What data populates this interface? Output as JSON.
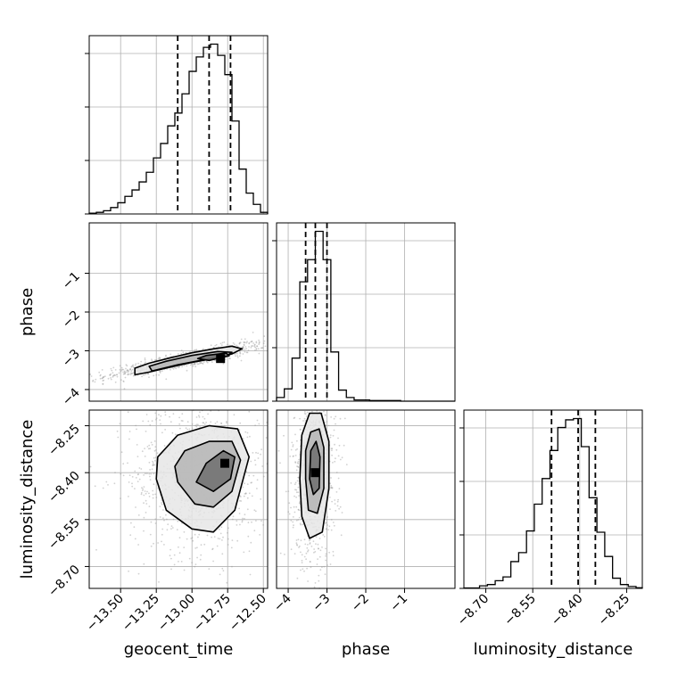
{
  "chart_data": {
    "type": "corner",
    "parameters": [
      {
        "name": "geocent_time",
        "label": "geocent_time",
        "range": [
          -13.72,
          -12.47
        ],
        "ticks": [
          -13.5,
          -13.25,
          -13.0,
          -12.75,
          -12.5
        ],
        "tick_labels": [
          "−13.50",
          "−13.25",
          "−13.00",
          "−12.75",
          "−12.50"
        ],
        "quantiles": [
          -13.1,
          -12.88,
          -12.73
        ]
      },
      {
        "name": "phase",
        "label": "phase",
        "range": [
          -4.3,
          0.3
        ],
        "ticks": [
          -4,
          -3,
          -2,
          -1
        ],
        "tick_labels": [
          "−4",
          "−3",
          "−2",
          "−1"
        ],
        "quantiles": [
          -3.55,
          -3.3,
          -3.0
        ]
      },
      {
        "name": "luminosity_distance",
        "label": "luminosity_distance",
        "range": [
          -8.77,
          -8.2
        ],
        "ticks": [
          -8.7,
          -8.55,
          -8.4,
          -8.25
        ],
        "tick_labels": [
          "−8.70",
          "−8.55",
          "−8.40",
          "−8.25"
        ],
        "quantiles": [
          -8.49,
          -8.405,
          -8.35
        ]
      }
    ],
    "histograms": [
      {
        "parameter": "geocent_time",
        "edges": [
          -13.72,
          -13.67,
          -13.62,
          -13.57,
          -13.52,
          -13.47,
          -13.42,
          -13.37,
          -13.32,
          -13.27,
          -13.22,
          -13.17,
          -13.12,
          -13.07,
          -13.02,
          -12.97,
          -12.92,
          -12.87,
          -12.82,
          -12.77,
          -12.72,
          -12.67,
          -12.62,
          -12.57,
          -12.52,
          -12.47
        ],
        "counts": [
          0.5,
          1,
          2,
          4,
          7,
          11,
          15,
          20,
          26,
          35,
          44,
          55,
          63,
          75,
          89,
          98,
          104,
          106,
          99,
          87,
          58,
          28,
          13,
          6,
          1
        ]
      },
      {
        "parameter": "phase",
        "edges": [
          -4.3,
          -4.1,
          -3.9,
          -3.7,
          -3.5,
          -3.3,
          -3.1,
          -2.9,
          -2.7,
          -2.5,
          -2.3,
          -2.1,
          -1.9,
          -1.7,
          -1.5,
          -1.3,
          -1.1,
          -0.9,
          -0.7,
          -0.5,
          -0.3,
          -0.1,
          0.1,
          0.3
        ],
        "counts": [
          3,
          10,
          35,
          97,
          115,
          138,
          115,
          40,
          9,
          3,
          1,
          1,
          0.5,
          0.5,
          0.5,
          0.5,
          0,
          0,
          0,
          0,
          0,
          0,
          0
        ]
      },
      {
        "parameter": "luminosity_distance",
        "edges": [
          -8.77,
          -8.745,
          -8.72,
          -8.695,
          -8.67,
          -8.645,
          -8.62,
          -8.595,
          -8.57,
          -8.545,
          -8.52,
          -8.495,
          -8.47,
          -8.445,
          -8.42,
          -8.395,
          -8.37,
          -8.345,
          -8.32,
          -8.295,
          -8.27,
          -8.245,
          -8.22,
          -8.2
        ],
        "counts": [
          0.3,
          0.3,
          2,
          3,
          6,
          9,
          21,
          28,
          45,
          66,
          86,
          108,
          126,
          132,
          133,
          111,
          71,
          44,
          25,
          8,
          3,
          1.5,
          0.5
        ]
      }
    ],
    "pairs": [
      {
        "x": "geocent_time",
        "y": "phase",
        "mode": [
          -12.8,
          -3.2
        ],
        "contours": [
          [
            [
              -13.4,
              -3.62
            ],
            [
              -13.3,
              -3.55
            ],
            [
              -13.15,
              -3.42
            ],
            [
              -13.0,
              -3.3
            ],
            [
              -12.85,
              -3.2
            ],
            [
              -12.72,
              -3.08
            ],
            [
              -12.65,
              -2.95
            ],
            [
              -12.72,
              -2.88
            ],
            [
              -12.85,
              -2.95
            ],
            [
              -13.0,
              -3.05
            ],
            [
              -13.15,
              -3.18
            ],
            [
              -13.3,
              -3.32
            ],
            [
              -13.4,
              -3.45
            ]
          ],
          [
            [
              -13.28,
              -3.52
            ],
            [
              -13.1,
              -3.36
            ],
            [
              -12.9,
              -3.22
            ],
            [
              -12.76,
              -3.14
            ],
            [
              -12.72,
              -3.04
            ],
            [
              -12.82,
              -3.02
            ],
            [
              -13.0,
              -3.12
            ],
            [
              -13.18,
              -3.27
            ],
            [
              -13.3,
              -3.4
            ]
          ],
          [
            [
              -12.88,
              -3.25
            ],
            [
              -12.74,
              -3.13
            ],
            [
              -12.76,
              -3.06
            ],
            [
              -12.9,
              -3.12
            ],
            [
              -12.96,
              -3.2
            ]
          ]
        ]
      },
      {
        "x": "geocent_time",
        "y": "luminosity_distance",
        "mode": [
          -12.77,
          -8.37
        ],
        "contours": [
          [
            [
              -13.25,
              -8.42
            ],
            [
              -13.18,
              -8.52
            ],
            [
              -13.0,
              -8.58
            ],
            [
              -12.85,
              -8.59
            ],
            [
              -12.7,
              -8.52
            ],
            [
              -12.6,
              -8.35
            ],
            [
              -12.68,
              -8.26
            ],
            [
              -12.88,
              -8.25
            ],
            [
              -13.1,
              -8.28
            ],
            [
              -13.24,
              -8.35
            ]
          ],
          [
            [
              -13.1,
              -8.43
            ],
            [
              -12.98,
              -8.5
            ],
            [
              -12.85,
              -8.51
            ],
            [
              -12.72,
              -8.46
            ],
            [
              -12.66,
              -8.36
            ],
            [
              -12.72,
              -8.3
            ],
            [
              -12.88,
              -8.3
            ],
            [
              -13.05,
              -8.33
            ],
            [
              -13.12,
              -8.38
            ]
          ],
          [
            [
              -12.97,
              -8.43
            ],
            [
              -12.85,
              -8.46
            ],
            [
              -12.73,
              -8.42
            ],
            [
              -12.7,
              -8.35
            ],
            [
              -12.78,
              -8.33
            ],
            [
              -12.9,
              -8.37
            ]
          ]
        ]
      },
      {
        "x": "phase",
        "y": "luminosity_distance",
        "mode": [
          -3.3,
          -8.4
        ],
        "contours": [
          [
            [
              -3.7,
              -8.42
            ],
            [
              -3.65,
              -8.54
            ],
            [
              -3.45,
              -8.61
            ],
            [
              -3.12,
              -8.59
            ],
            [
              -2.95,
              -8.45
            ],
            [
              -2.95,
              -8.3
            ],
            [
              -3.15,
              -8.21
            ],
            [
              -3.45,
              -8.21
            ],
            [
              -3.65,
              -8.28
            ]
          ],
          [
            [
              -3.55,
              -8.42
            ],
            [
              -3.48,
              -8.52
            ],
            [
              -3.25,
              -8.53
            ],
            [
              -3.08,
              -8.45
            ],
            [
              -3.08,
              -8.32
            ],
            [
              -3.2,
              -8.26
            ],
            [
              -3.42,
              -8.27
            ],
            [
              -3.55,
              -8.33
            ]
          ],
          [
            [
              -3.45,
              -8.42
            ],
            [
              -3.35,
              -8.47
            ],
            [
              -3.2,
              -8.45
            ],
            [
              -3.18,
              -8.35
            ],
            [
              -3.28,
              -8.3
            ],
            [
              -3.42,
              -8.33
            ]
          ]
        ]
      }
    ],
    "grid": true,
    "quantile_line_style": "dashed"
  }
}
